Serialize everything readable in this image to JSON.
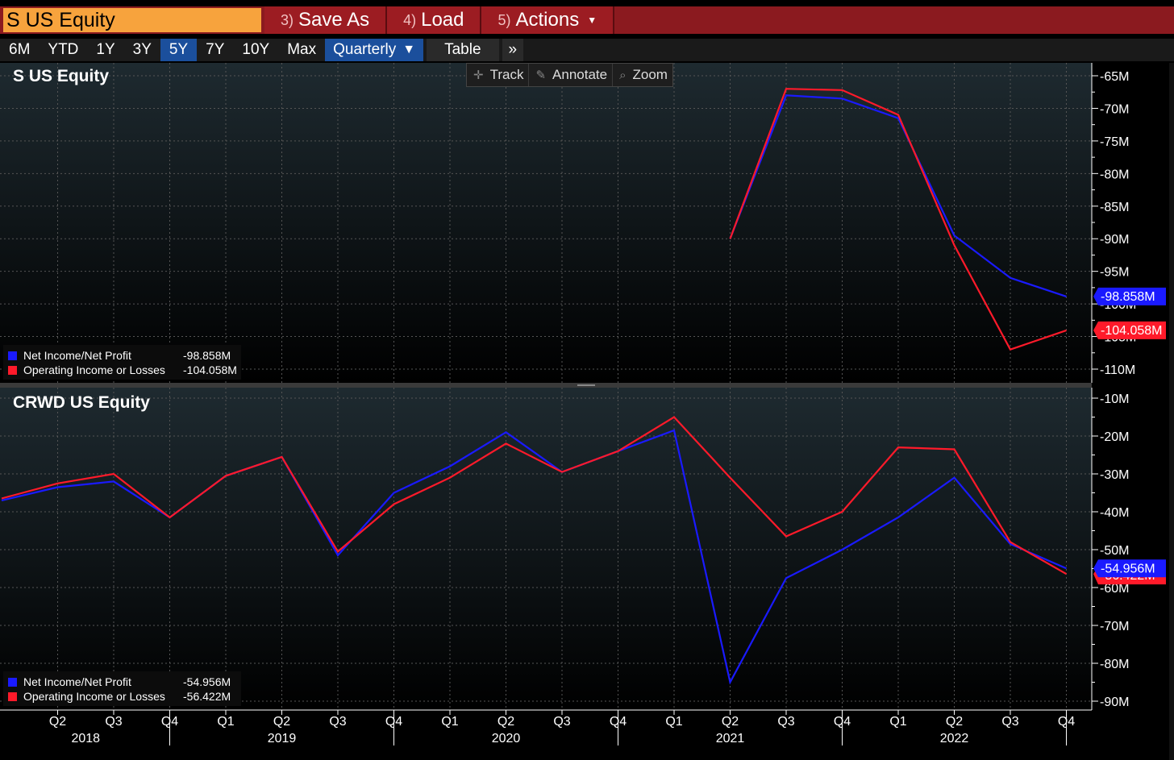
{
  "toolbar": {
    "ticker": "S US Equity",
    "buttons": [
      {
        "num": "3)",
        "label": "Save As"
      },
      {
        "num": "4)",
        "label": "Load"
      },
      {
        "num": "5)",
        "label": "Actions"
      }
    ]
  },
  "ranges": [
    "6M",
    "YTD",
    "1Y",
    "3Y",
    "5Y",
    "7Y",
    "10Y",
    "Max"
  ],
  "active_range": "5Y",
  "frequency": "Quarterly",
  "table_label": "Table",
  "more_label": "»",
  "tools": {
    "track": "Track",
    "annotate": "Annotate",
    "zoom": "Zoom"
  },
  "colors": {
    "net_income": "#1a1aff",
    "operating_income": "#ff1a2a",
    "background_top": "#1e2a30",
    "background_bottom": "#000000"
  },
  "chart_data": [
    {
      "type": "line",
      "title": "S US Equity",
      "x": [
        "Q2 2018",
        "Q3 2018",
        "Q4 2018",
        "Q1 2019",
        "Q2 2019",
        "Q3 2019",
        "Q4 2019",
        "Q1 2020",
        "Q2 2020",
        "Q3 2020",
        "Q4 2020",
        "Q1 2021",
        "Q2 2021",
        "Q3 2021",
        "Q4 2021",
        "Q1 2022",
        "Q2 2022",
        "Q3 2022",
        "Q4 2022"
      ],
      "yticks": [
        "-65M",
        "-70M",
        "-75M",
        "-80M",
        "-85M",
        "-90M",
        "-95M",
        "-100M",
        "-105M",
        "-110M"
      ],
      "ylim": [
        -111,
        -64
      ],
      "series": [
        {
          "name": "Net Income/Net Profit",
          "last": "-98.858M",
          "values": [
            null,
            null,
            null,
            null,
            null,
            null,
            null,
            null,
            null,
            null,
            null,
            null,
            -90.0,
            -68.0,
            -68.5,
            -71.5,
            -89.5,
            -96.0,
            -98.858
          ]
        },
        {
          "name": "Operating Income or Losses",
          "last": "-104.058M",
          "values": [
            null,
            null,
            null,
            null,
            null,
            null,
            null,
            null,
            null,
            null,
            null,
            null,
            -90.0,
            -67.0,
            -67.2,
            -71.0,
            -91.0,
            -107.0,
            -104.058
          ]
        }
      ]
    },
    {
      "type": "line",
      "title": "CRWD US Equity",
      "x": [
        "Q1 2018",
        "Q2 2018",
        "Q3 2018",
        "Q4 2018",
        "Q1 2019",
        "Q2 2019",
        "Q3 2019",
        "Q4 2019",
        "Q1 2020",
        "Q2 2020",
        "Q3 2020",
        "Q4 2020",
        "Q1 2021",
        "Q2 2021",
        "Q3 2021",
        "Q4 2021",
        "Q1 2022",
        "Q2 2022",
        "Q3 2022",
        "Q4 2022"
      ],
      "yticks": [
        "-10M",
        "-20M",
        "-30M",
        "-40M",
        "-50M",
        "-60M",
        "-70M",
        "-80M",
        "-90M"
      ],
      "ylim": [
        -91,
        -9
      ],
      "series": [
        {
          "name": "Net Income/Net Profit",
          "last": "-54.956M",
          "values": [
            -37.0,
            -33.5,
            -32.0,
            -41.5,
            -30.5,
            -25.5,
            -51.5,
            -35.0,
            -28.0,
            -19.0,
            -29.5,
            -24.0,
            -18.5,
            -85.0,
            -57.5,
            -50.0,
            -41.5,
            -31.0,
            -48.5,
            -54.956
          ]
        },
        {
          "name": "Operating Income or Losses",
          "last": "-56.422M",
          "values": [
            -36.5,
            -32.5,
            -30.0,
            -41.5,
            -30.5,
            -25.5,
            -50.5,
            -38.0,
            -31.0,
            -22.0,
            -29.5,
            -24.0,
            -15.0,
            -31.0,
            -46.5,
            -40.0,
            -23.0,
            -23.5,
            -48.0,
            -56.422
          ]
        }
      ]
    }
  ],
  "xaxis": {
    "quarters": [
      "Q2",
      "Q3",
      "Q4",
      "Q1",
      "Q2",
      "Q3",
      "Q4",
      "Q1",
      "Q2",
      "Q3",
      "Q4",
      "Q1",
      "Q2",
      "Q3",
      "Q4",
      "Q1",
      "Q2",
      "Q3",
      "Q4"
    ],
    "years": [
      "2018",
      "2019",
      "2020",
      "2021",
      "2022"
    ]
  }
}
